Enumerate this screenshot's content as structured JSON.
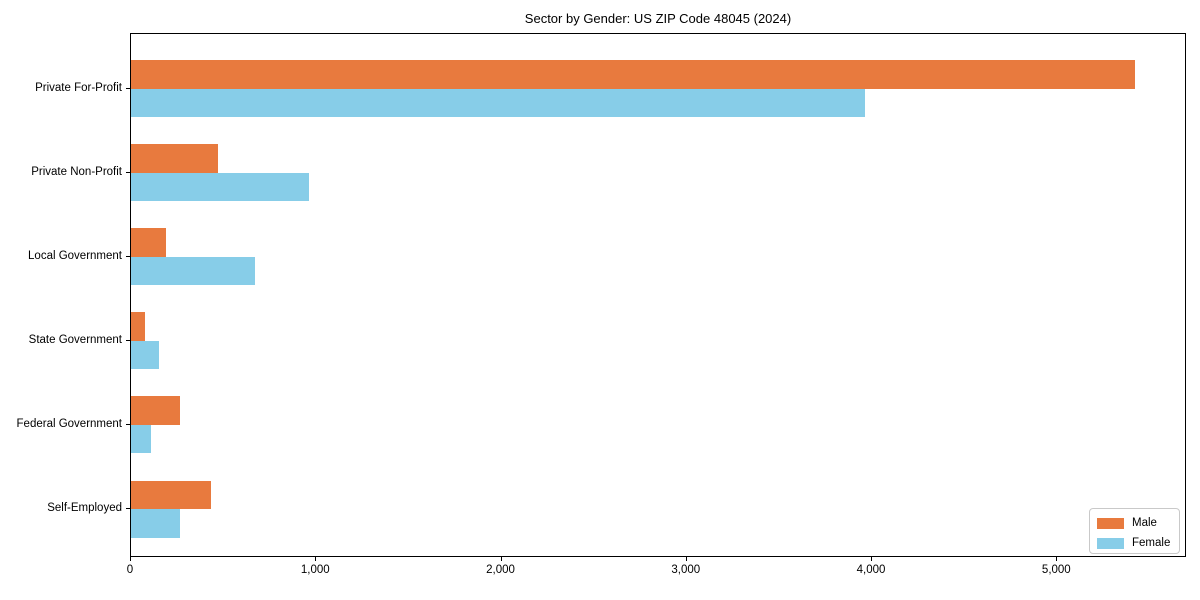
{
  "title": "Sector by Gender: US ZIP Code 48045 (2024)",
  "chart_data": {
    "type": "bar",
    "orientation": "horizontal",
    "title": "Sector by Gender: US ZIP Code 48045 (2024)",
    "categories": [
      "Private For-Profit",
      "Private Non-Profit",
      "Local Government",
      "State Government",
      "Federal Government",
      "Self-Employed"
    ],
    "series": [
      {
        "name": "Male",
        "color": "#e87a3e",
        "values": [
          5430,
          470,
          190,
          75,
          265,
          430
        ]
      },
      {
        "name": "Female",
        "color": "#87cde8",
        "values": [
          3970,
          960,
          670,
          150,
          110,
          265
        ]
      }
    ],
    "xlabel": "",
    "ylabel": "",
    "xlim": [
      0,
      5700
    ],
    "x_ticks": [
      0,
      1000,
      2000,
      3000,
      4000,
      5000
    ],
    "x_tick_labels": [
      "0",
      "1,000",
      "2,000",
      "3,000",
      "4,000",
      "5,000"
    ],
    "grid": false,
    "legend": {
      "position": "lower right",
      "entries": [
        {
          "label": "Male",
          "color": "#e87a3e"
        },
        {
          "label": "Female",
          "color": "#87cde8"
        }
      ]
    }
  }
}
